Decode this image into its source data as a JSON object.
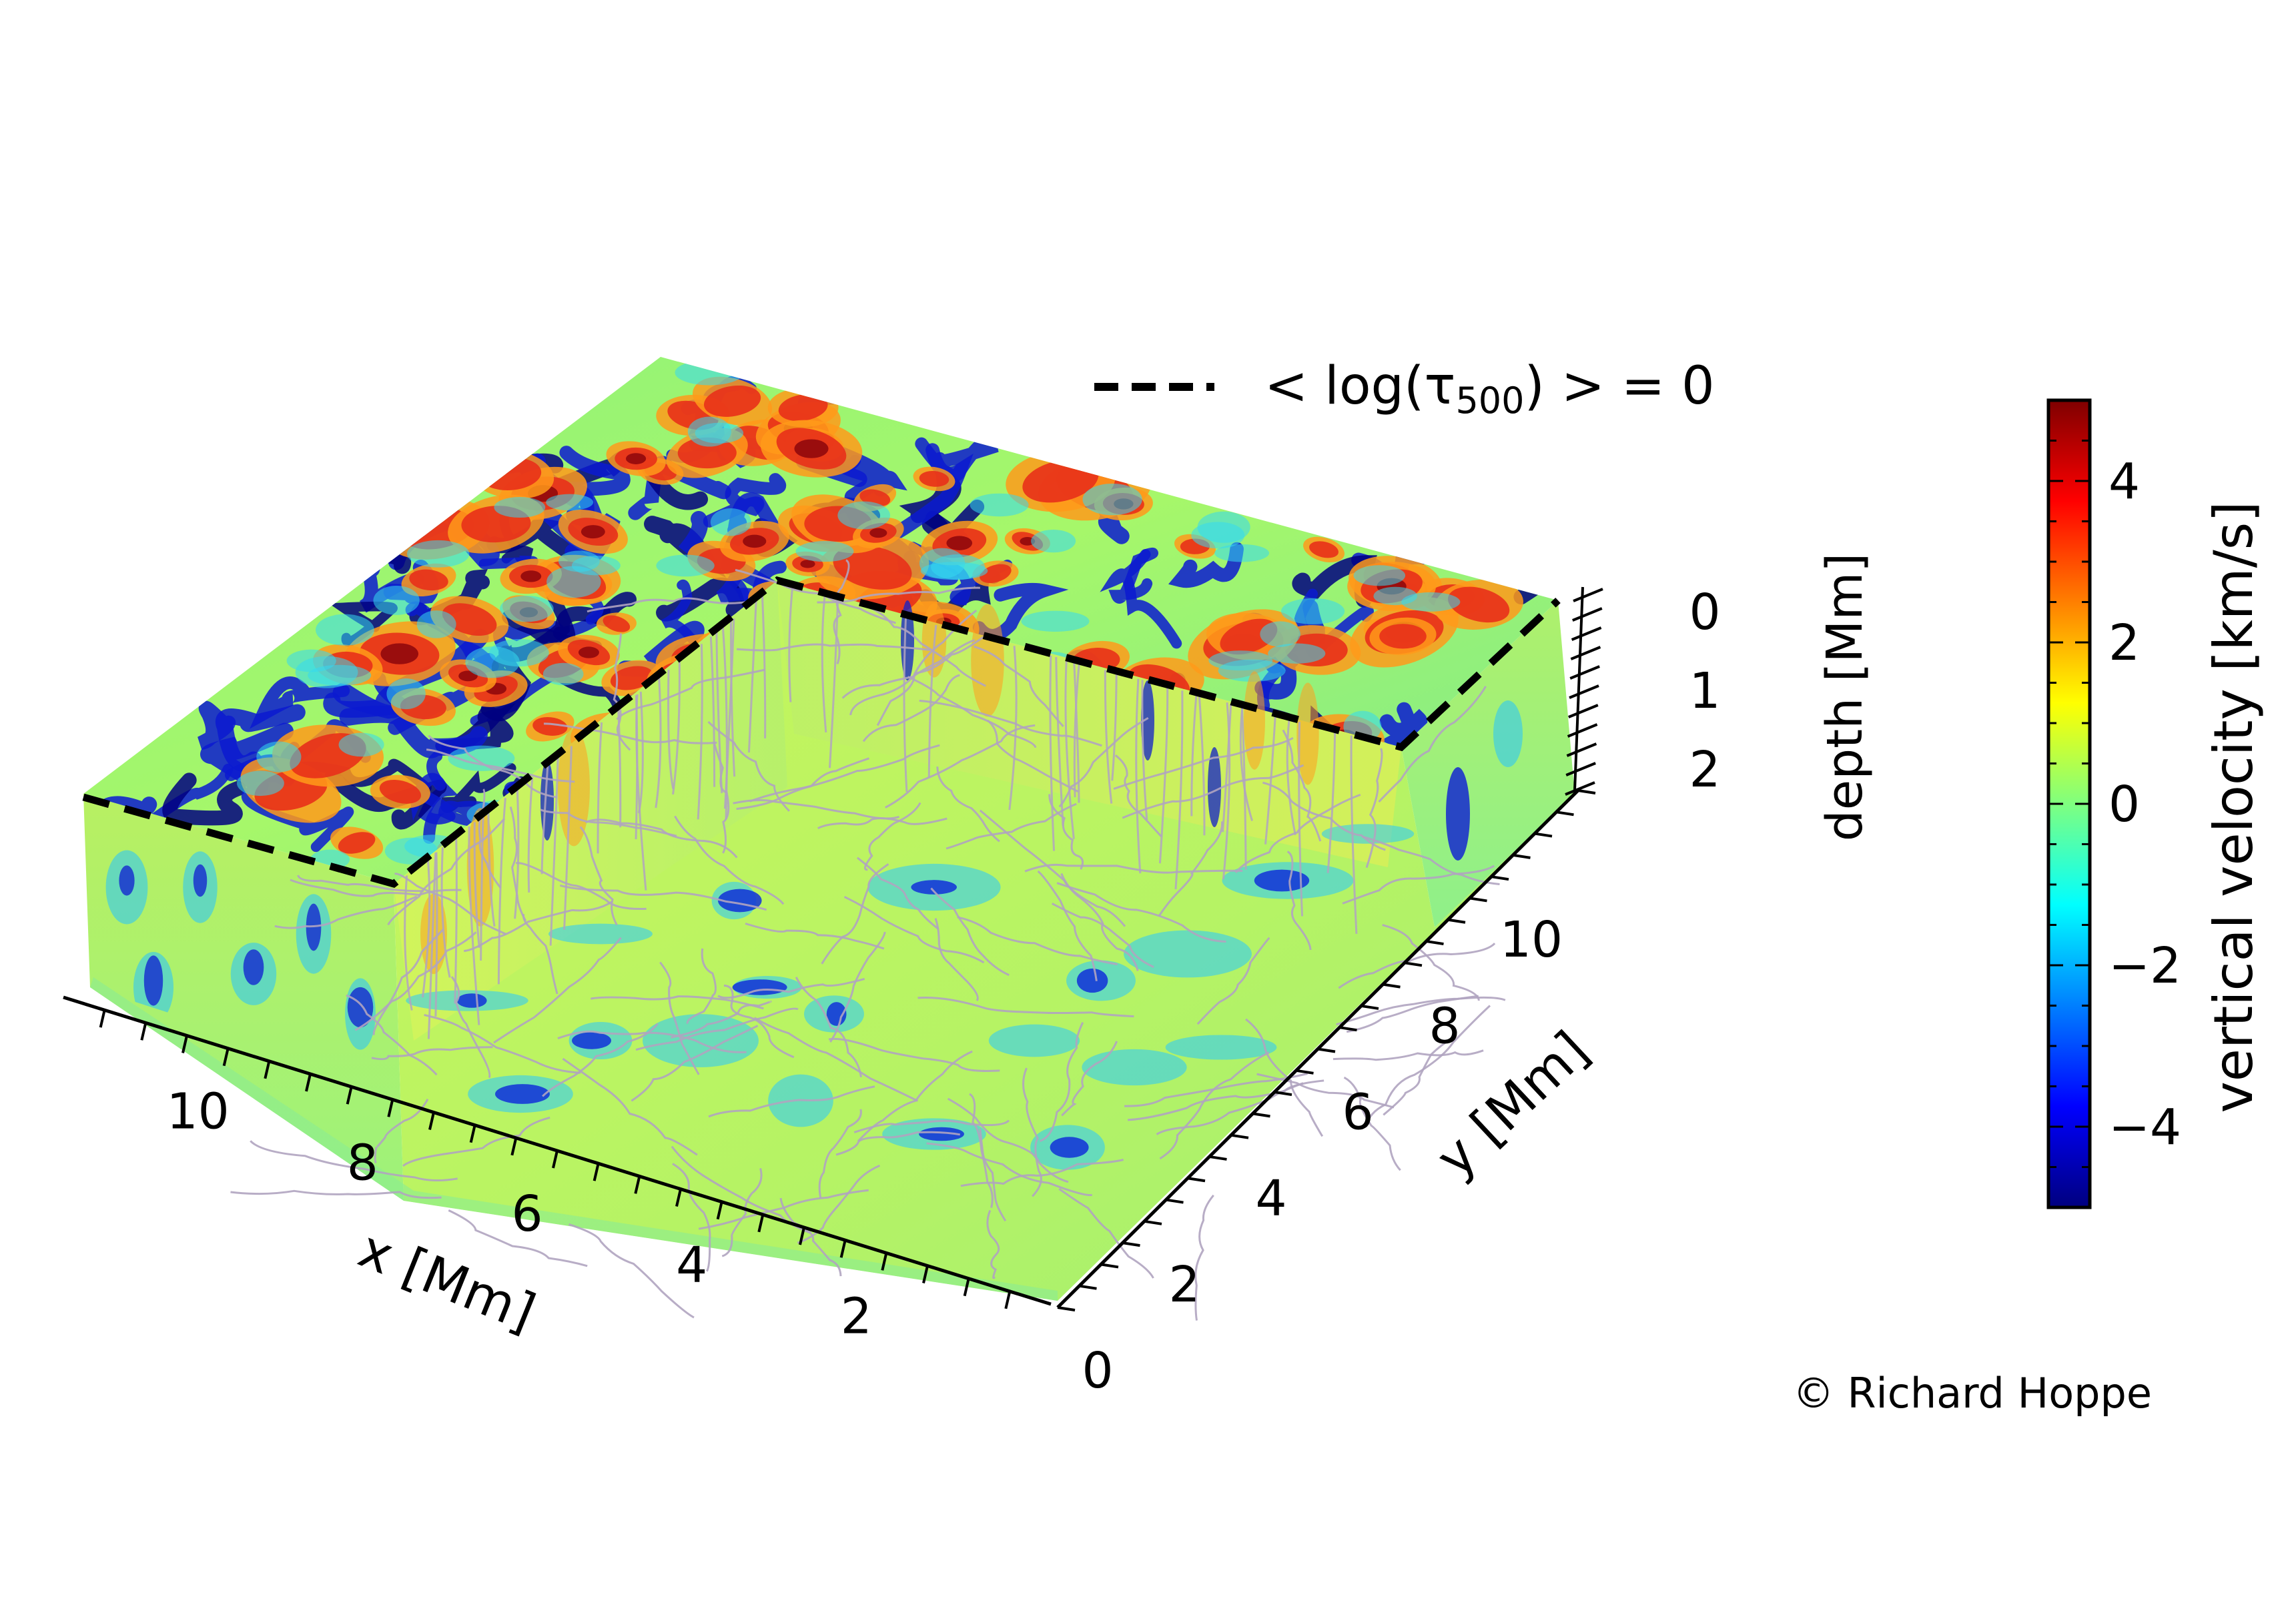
{
  "chart_data": {
    "type": "heatmap",
    "subtype": "3d-cube-cutaway",
    "title": "",
    "x_axis": {
      "label": "x [Mm]",
      "ticks": [
        2,
        4,
        6,
        8,
        10
      ],
      "range": [
        0,
        12
      ]
    },
    "y_axis": {
      "label": "y [Mm]",
      "ticks": [
        0,
        2,
        4,
        6,
        8,
        10
      ],
      "range": [
        0,
        12
      ]
    },
    "z_axis": {
      "label": "depth [Mm]",
      "ticks": [
        0,
        1,
        2
      ],
      "range": [
        0,
        2.5
      ]
    },
    "legend": {
      "entries": [
        {
          "label": "< log(τ500) > = 0",
          "label_parts": {
            "pre": "< log(τ",
            "sub": "500",
            "post": ") > = 0"
          },
          "style": "dashed",
          "color": "#000000"
        }
      ],
      "placement": "top-center"
    },
    "colorbar": {
      "label": "vertical velocity [km/s]",
      "ticks": [
        4,
        2,
        0,
        -2,
        -4
      ],
      "tick_labels": [
        "4",
        "2",
        "0",
        "−2",
        "−4"
      ],
      "range": [
        -5,
        5
      ],
      "colormap": "jet",
      "colormap_stops": [
        "#00007f",
        "#0000ff",
        "#007fff",
        "#00ffff",
        "#7fff7f",
        "#ffff00",
        "#ff7f00",
        "#ff0000",
        "#7f0000"
      ],
      "placement": "right"
    },
    "overlay": "velocity streamlines (grey) on cutaway faces",
    "grid": false
  },
  "copyright": "© Richard Hoppe",
  "colors": {
    "granule": "#e8361c",
    "intergranular": "#1020d8",
    "neutral": "#b8f060",
    "streamline": "#b0a4c0"
  }
}
